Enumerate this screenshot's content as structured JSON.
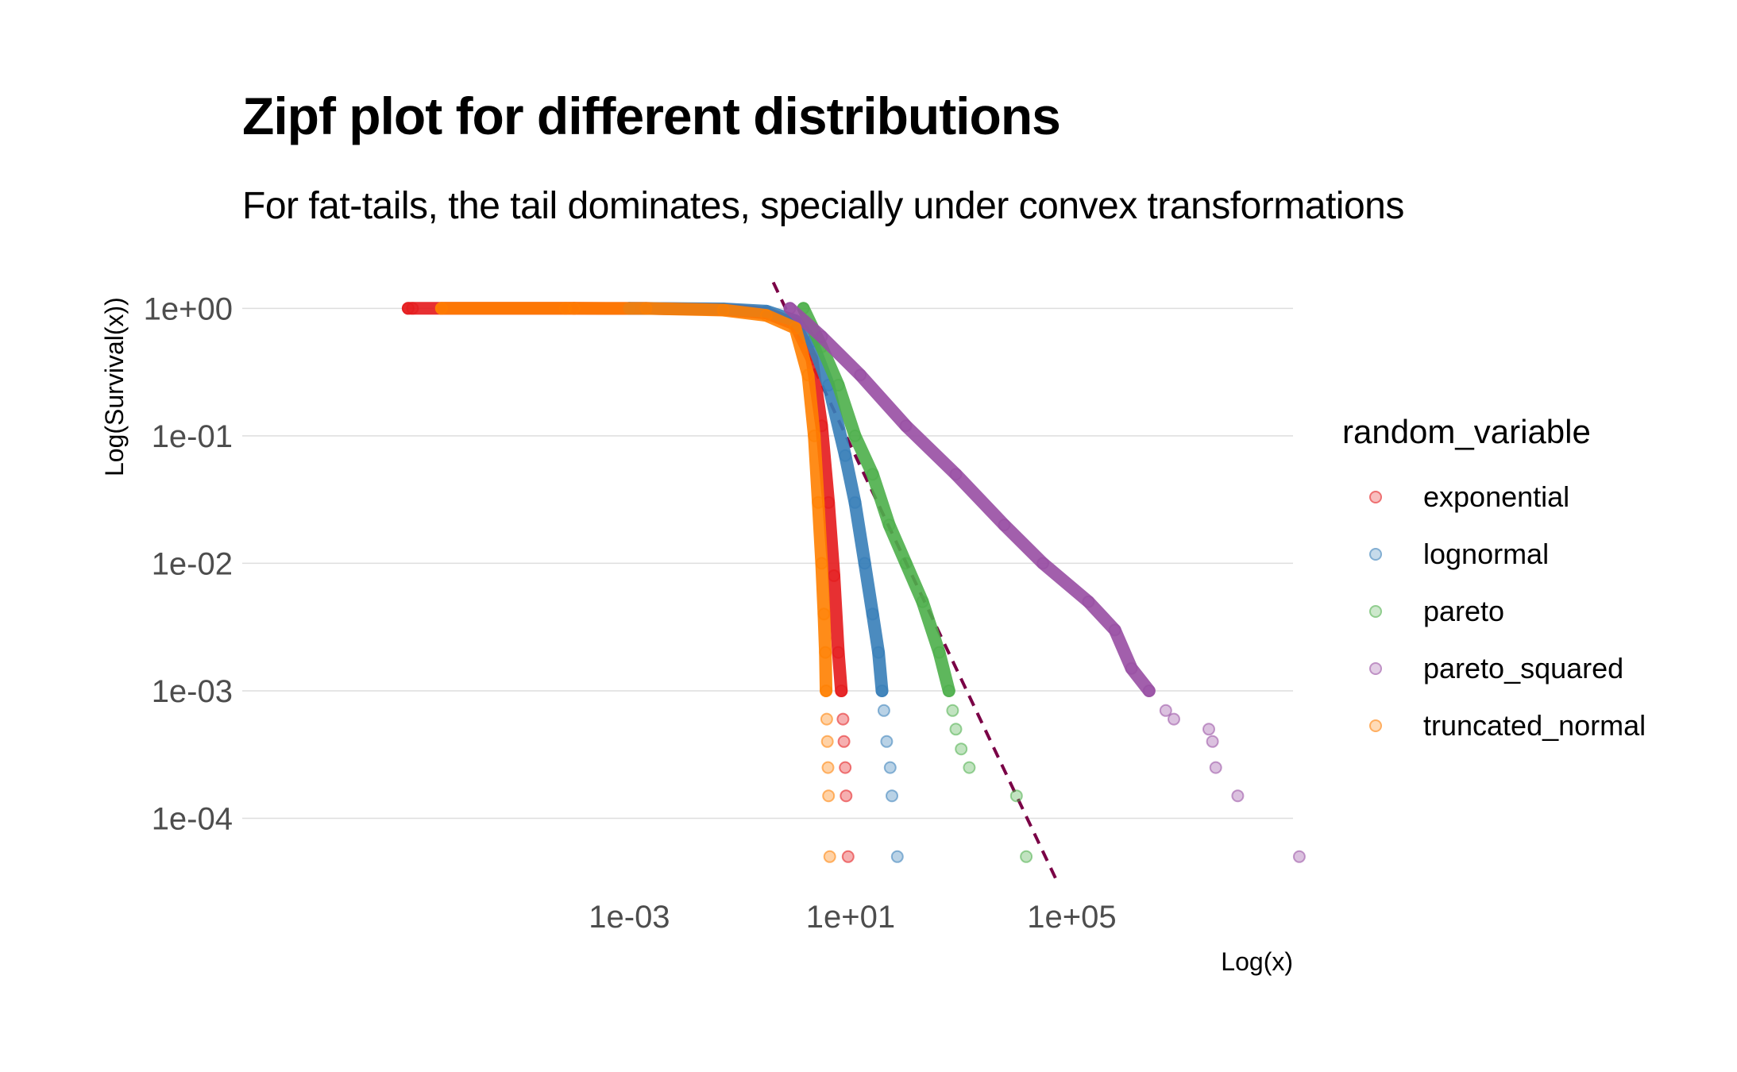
{
  "chart_data": {
    "type": "scatter",
    "title": "Zipf plot for different distributions",
    "subtitle": "For fat-tails, the tail dominates, specially under convex transformations",
    "xlabel": "Log(x)",
    "ylabel": "Log(Survival(x))",
    "x_scale": "log10",
    "y_scale": "log10",
    "xlim": [
      1e-10,
      1000000000.0
    ],
    "ylim": [
      2.4e-05,
      2.0
    ],
    "x_ticks": [
      {
        "value": 0.001,
        "label": "1e-03"
      },
      {
        "value": 10,
        "label": "1e+01"
      },
      {
        "value": 100000,
        "label": "1e+05"
      }
    ],
    "y_ticks": [
      {
        "value": 1,
        "label": "1e+00"
      },
      {
        "value": 0.1,
        "label": "1e-01"
      },
      {
        "value": 0.01,
        "label": "1e-02"
      },
      {
        "value": 0.001,
        "label": "1e-03"
      },
      {
        "value": 0.0001,
        "label": "1e-04"
      }
    ],
    "grid": "horizontal",
    "legend": {
      "title": "random_variable",
      "position": "right"
    },
    "reference_line": {
      "style": "dashed",
      "color": "#7a0046",
      "from": [
        0.4,
        1.6
      ],
      "to": [
        58000,
        3e-05
      ]
    },
    "series": [
      {
        "name": "exponential",
        "color": "#e41a1c",
        "points": [
          [
            1e-07,
            1.0
          ],
          [
            1.2e-07,
            1.0
          ],
          [
            0.0001,
            1.0
          ],
          [
            0.002,
            0.999
          ],
          [
            0.05,
            0.98
          ],
          [
            0.3,
            0.92
          ],
          [
            1,
            0.75
          ],
          [
            2,
            0.4
          ],
          [
            3,
            0.12
          ],
          [
            4,
            0.03
          ],
          [
            5,
            0.008
          ],
          [
            6,
            0.002
          ],
          [
            6.8,
            0.001
          ],
          [
            7.3,
            0.0006
          ],
          [
            7.6,
            0.0004
          ],
          [
            8,
            0.00025
          ],
          [
            8.3,
            0.00015
          ],
          [
            9,
            5e-05
          ]
        ]
      },
      {
        "name": "lognormal",
        "color": "#377eb8",
        "points": [
          [
            0.001,
            1.0
          ],
          [
            0.05,
            0.99
          ],
          [
            0.3,
            0.95
          ],
          [
            1,
            0.8
          ],
          [
            2,
            0.55
          ],
          [
            4,
            0.25
          ],
          [
            8,
            0.07
          ],
          [
            12,
            0.03
          ],
          [
            18,
            0.01
          ],
          [
            25,
            0.004
          ],
          [
            32,
            0.002
          ],
          [
            37,
            0.001
          ],
          [
            40,
            0.0007
          ],
          [
            45,
            0.0004
          ],
          [
            52,
            0.00025
          ],
          [
            56,
            0.00015
          ],
          [
            70,
            5e-05
          ]
        ]
      },
      {
        "name": "pareto",
        "color": "#4daf4a",
        "points": [
          [
            1.4,
            1.0
          ],
          [
            3,
            0.5
          ],
          [
            6,
            0.25
          ],
          [
            12,
            0.1
          ],
          [
            25,
            0.05
          ],
          [
            50,
            0.02
          ],
          [
            100,
            0.01
          ],
          [
            200,
            0.005
          ],
          [
            400,
            0.002
          ],
          [
            600,
            0.001
          ],
          [
            700,
            0.0007
          ],
          [
            800,
            0.0005
          ],
          [
            1000,
            0.00035
          ],
          [
            1400,
            0.00025
          ],
          [
            10000,
            0.00015
          ],
          [
            15000,
            5e-05
          ]
        ]
      },
      {
        "name": "pareto_squared",
        "color": "#984ea3",
        "points": [
          [
            0.8,
            1.0
          ],
          [
            3,
            0.6
          ],
          [
            15,
            0.3
          ],
          [
            100,
            0.12
          ],
          [
            800,
            0.05
          ],
          [
            6000,
            0.02
          ],
          [
            30000,
            0.01
          ],
          [
            200000,
            0.005
          ],
          [
            600000,
            0.003
          ],
          [
            1200000,
            0.0015
          ],
          [
            2500000,
            0.001
          ],
          [
            5000000,
            0.0007
          ],
          [
            7000000,
            0.0006
          ],
          [
            30000000,
            0.0005
          ],
          [
            35000000,
            0.0004
          ],
          [
            40000000,
            0.00025
          ],
          [
            100000000,
            0.00015
          ],
          [
            1300000000,
            5e-05
          ]
        ]
      },
      {
        "name": "truncated_normal",
        "color": "#ff7f00",
        "points": [
          [
            4e-07,
            1.0
          ],
          [
            7e-05,
            1.0
          ],
          [
            0.0001,
            1.0
          ],
          [
            0.002,
            0.999
          ],
          [
            0.05,
            0.97
          ],
          [
            0.3,
            0.88
          ],
          [
            1,
            0.7
          ],
          [
            1.7,
            0.3
          ],
          [
            2.2,
            0.1
          ],
          [
            2.6,
            0.03
          ],
          [
            3,
            0.01
          ],
          [
            3.3,
            0.004
          ],
          [
            3.5,
            0.002
          ],
          [
            3.6,
            0.001
          ],
          [
            3.7,
            0.0006
          ],
          [
            3.8,
            0.0004
          ],
          [
            3.9,
            0.00025
          ],
          [
            4,
            0.00015
          ],
          [
            4.2,
            5e-05
          ]
        ]
      }
    ]
  }
}
